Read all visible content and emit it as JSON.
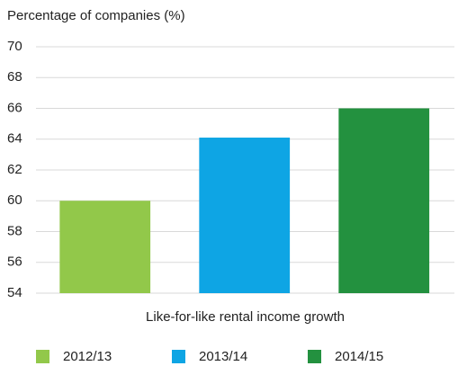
{
  "chart_data": {
    "type": "bar",
    "y_axis_label": "Percentage of companies (%)",
    "categories": [
      "Like-for-like rental income growth"
    ],
    "series": [
      {
        "name": "2012/13",
        "color": "#92c84a",
        "values": [
          60
        ]
      },
      {
        "name": "2013/14",
        "color": "#0ea5e4",
        "values": [
          64.1
        ]
      },
      {
        "name": "2014/15",
        "color": "#23913f",
        "values": [
          66
        ]
      }
    ],
    "ylim": [
      54,
      70
    ],
    "yticks": [
      54,
      56,
      58,
      60,
      62,
      64,
      66,
      68,
      70
    ],
    "grid": true,
    "legend": "bottom"
  }
}
